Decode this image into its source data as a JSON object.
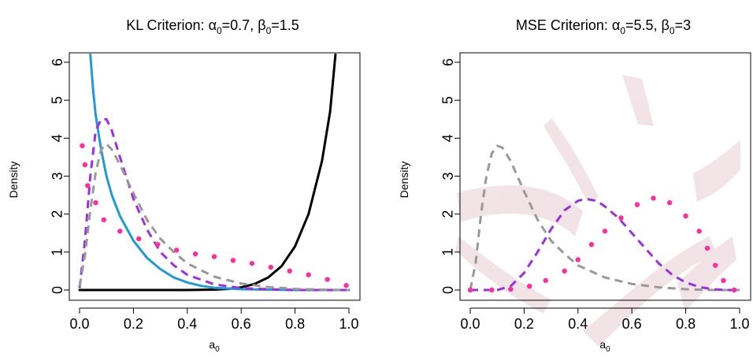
{
  "chart_data": [
    {
      "type": "line",
      "title_parts": {
        "prefix": "KL Criterion: ",
        "alpha_sym": "α",
        "sub": "0",
        "alpha_val": "=0.7, ",
        "beta_sym": "β",
        "beta_val": "=1.5"
      },
      "xlabel": {
        "base": "a",
        "sub": "0"
      },
      "ylabel": "Density",
      "xlim": [
        0,
        1
      ],
      "ylim": [
        0,
        6
      ],
      "xticks": [
        "0.0",
        "0.2",
        "0.4",
        "0.6",
        "0.8",
        "1.0"
      ],
      "yticks": [
        "0",
        "1",
        "2",
        "3",
        "4",
        "5",
        "6"
      ],
      "series": [
        {
          "style": "solid",
          "color": "#000000",
          "x": [
            0.0,
            0.1,
            0.2,
            0.3,
            0.4,
            0.5,
            0.55,
            0.6,
            0.65,
            0.7,
            0.75,
            0.8,
            0.85,
            0.9,
            0.93,
            0.95
          ],
          "values": [
            0.0,
            0.0,
            0.0,
            0.0,
            0.0,
            0.01,
            0.03,
            0.07,
            0.16,
            0.33,
            0.63,
            1.15,
            2.0,
            3.4,
            4.7,
            6.2
          ]
        },
        {
          "style": "solid",
          "color": "#1f9ad6",
          "x": [
            0.04,
            0.05,
            0.06,
            0.08,
            0.1,
            0.12,
            0.15,
            0.2,
            0.25,
            0.3,
            0.35,
            0.4,
            0.45,
            0.5,
            0.6,
            0.7,
            0.8,
            1.0
          ],
          "values": [
            6.2,
            5.3,
            4.6,
            3.7,
            3.0,
            2.5,
            1.95,
            1.3,
            0.85,
            0.55,
            0.33,
            0.2,
            0.11,
            0.06,
            0.02,
            0.01,
            0.0,
            0.0
          ]
        },
        {
          "style": "dashed",
          "color": "#9b30e0",
          "x": [
            0.0,
            0.02,
            0.04,
            0.06,
            0.08,
            0.1,
            0.12,
            0.15,
            0.2,
            0.25,
            0.3,
            0.35,
            0.4,
            0.5,
            0.6,
            0.7,
            0.8,
            1.0
          ],
          "values": [
            0.05,
            1.3,
            3.0,
            4.2,
            4.5,
            4.5,
            4.2,
            3.5,
            2.4,
            1.6,
            1.0,
            0.65,
            0.4,
            0.15,
            0.05,
            0.02,
            0.0,
            0.0
          ]
        },
        {
          "style": "dashed",
          "color": "#999999",
          "x": [
            0.0,
            0.02,
            0.04,
            0.06,
            0.08,
            0.1,
            0.12,
            0.15,
            0.2,
            0.25,
            0.3,
            0.35,
            0.4,
            0.5,
            0.6,
            0.7,
            0.8,
            0.9,
            1.0
          ],
          "values": [
            0.1,
            0.9,
            2.1,
            3.1,
            3.7,
            3.85,
            3.7,
            3.3,
            2.55,
            1.85,
            1.35,
            1.0,
            0.7,
            0.35,
            0.17,
            0.08,
            0.03,
            0.01,
            0.0
          ]
        },
        {
          "style": "dotted",
          "color": "#ff2d9e",
          "x": [
            0.01,
            0.02,
            0.03,
            0.06,
            0.09,
            0.15,
            0.22,
            0.29,
            0.36,
            0.43,
            0.5,
            0.57,
            0.64,
            0.71,
            0.78,
            0.85,
            0.92,
            0.99
          ],
          "values": [
            3.8,
            3.3,
            2.75,
            2.3,
            1.85,
            1.55,
            1.35,
            1.2,
            1.05,
            0.95,
            0.88,
            0.78,
            0.7,
            0.6,
            0.5,
            0.4,
            0.28,
            0.12
          ]
        }
      ]
    },
    {
      "type": "line",
      "title_parts": {
        "prefix": "MSE Criterion: ",
        "alpha_sym": "α",
        "sub": "0",
        "alpha_val": "=5.5, ",
        "beta_sym": "β",
        "beta_val": "=3"
      },
      "xlabel": {
        "base": "a",
        "sub": "0"
      },
      "ylabel": "Density",
      "xlim": [
        0,
        1
      ],
      "ylim": [
        0,
        6
      ],
      "xticks": [
        "0.0",
        "0.2",
        "0.4",
        "0.6",
        "0.8",
        "1.0"
      ],
      "yticks": [
        "0",
        "1",
        "2",
        "3",
        "4",
        "5",
        "6"
      ],
      "series": [
        {
          "style": "dashed",
          "color": "#999999",
          "x": [
            0.0,
            0.02,
            0.04,
            0.06,
            0.08,
            0.1,
            0.12,
            0.15,
            0.2,
            0.25,
            0.3,
            0.35,
            0.4,
            0.5,
            0.6,
            0.7,
            0.8,
            0.9,
            1.0
          ],
          "values": [
            0.0,
            0.7,
            2.0,
            3.0,
            3.6,
            3.8,
            3.75,
            3.4,
            2.6,
            1.85,
            1.3,
            0.95,
            0.65,
            0.33,
            0.16,
            0.07,
            0.02,
            0.0,
            0.0
          ]
        },
        {
          "style": "dashed",
          "color": "#9b30e0",
          "x": [
            0.0,
            0.1,
            0.15,
            0.2,
            0.25,
            0.3,
            0.35,
            0.4,
            0.43,
            0.47,
            0.5,
            0.55,
            0.6,
            0.65,
            0.7,
            0.75,
            0.8,
            0.85,
            0.9,
            0.95,
            1.0
          ],
          "values": [
            0.0,
            0.0,
            0.1,
            0.45,
            1.0,
            1.6,
            2.1,
            2.35,
            2.4,
            2.35,
            2.2,
            1.9,
            1.5,
            1.1,
            0.7,
            0.4,
            0.2,
            0.08,
            0.02,
            0.0,
            0.0
          ]
        },
        {
          "style": "dotted",
          "color": "#ff2d9e",
          "x": [
            0.0,
            0.08,
            0.15,
            0.22,
            0.28,
            0.35,
            0.4,
            0.45,
            0.5,
            0.56,
            0.62,
            0.68,
            0.74,
            0.8,
            0.85,
            0.88,
            0.91,
            0.94,
            0.98
          ],
          "values": [
            0.0,
            0.0,
            0.02,
            0.1,
            0.25,
            0.5,
            0.8,
            1.2,
            1.55,
            1.9,
            2.25,
            2.42,
            2.3,
            1.95,
            1.55,
            1.1,
            0.65,
            0.25,
            0.0
          ]
        }
      ]
    }
  ]
}
